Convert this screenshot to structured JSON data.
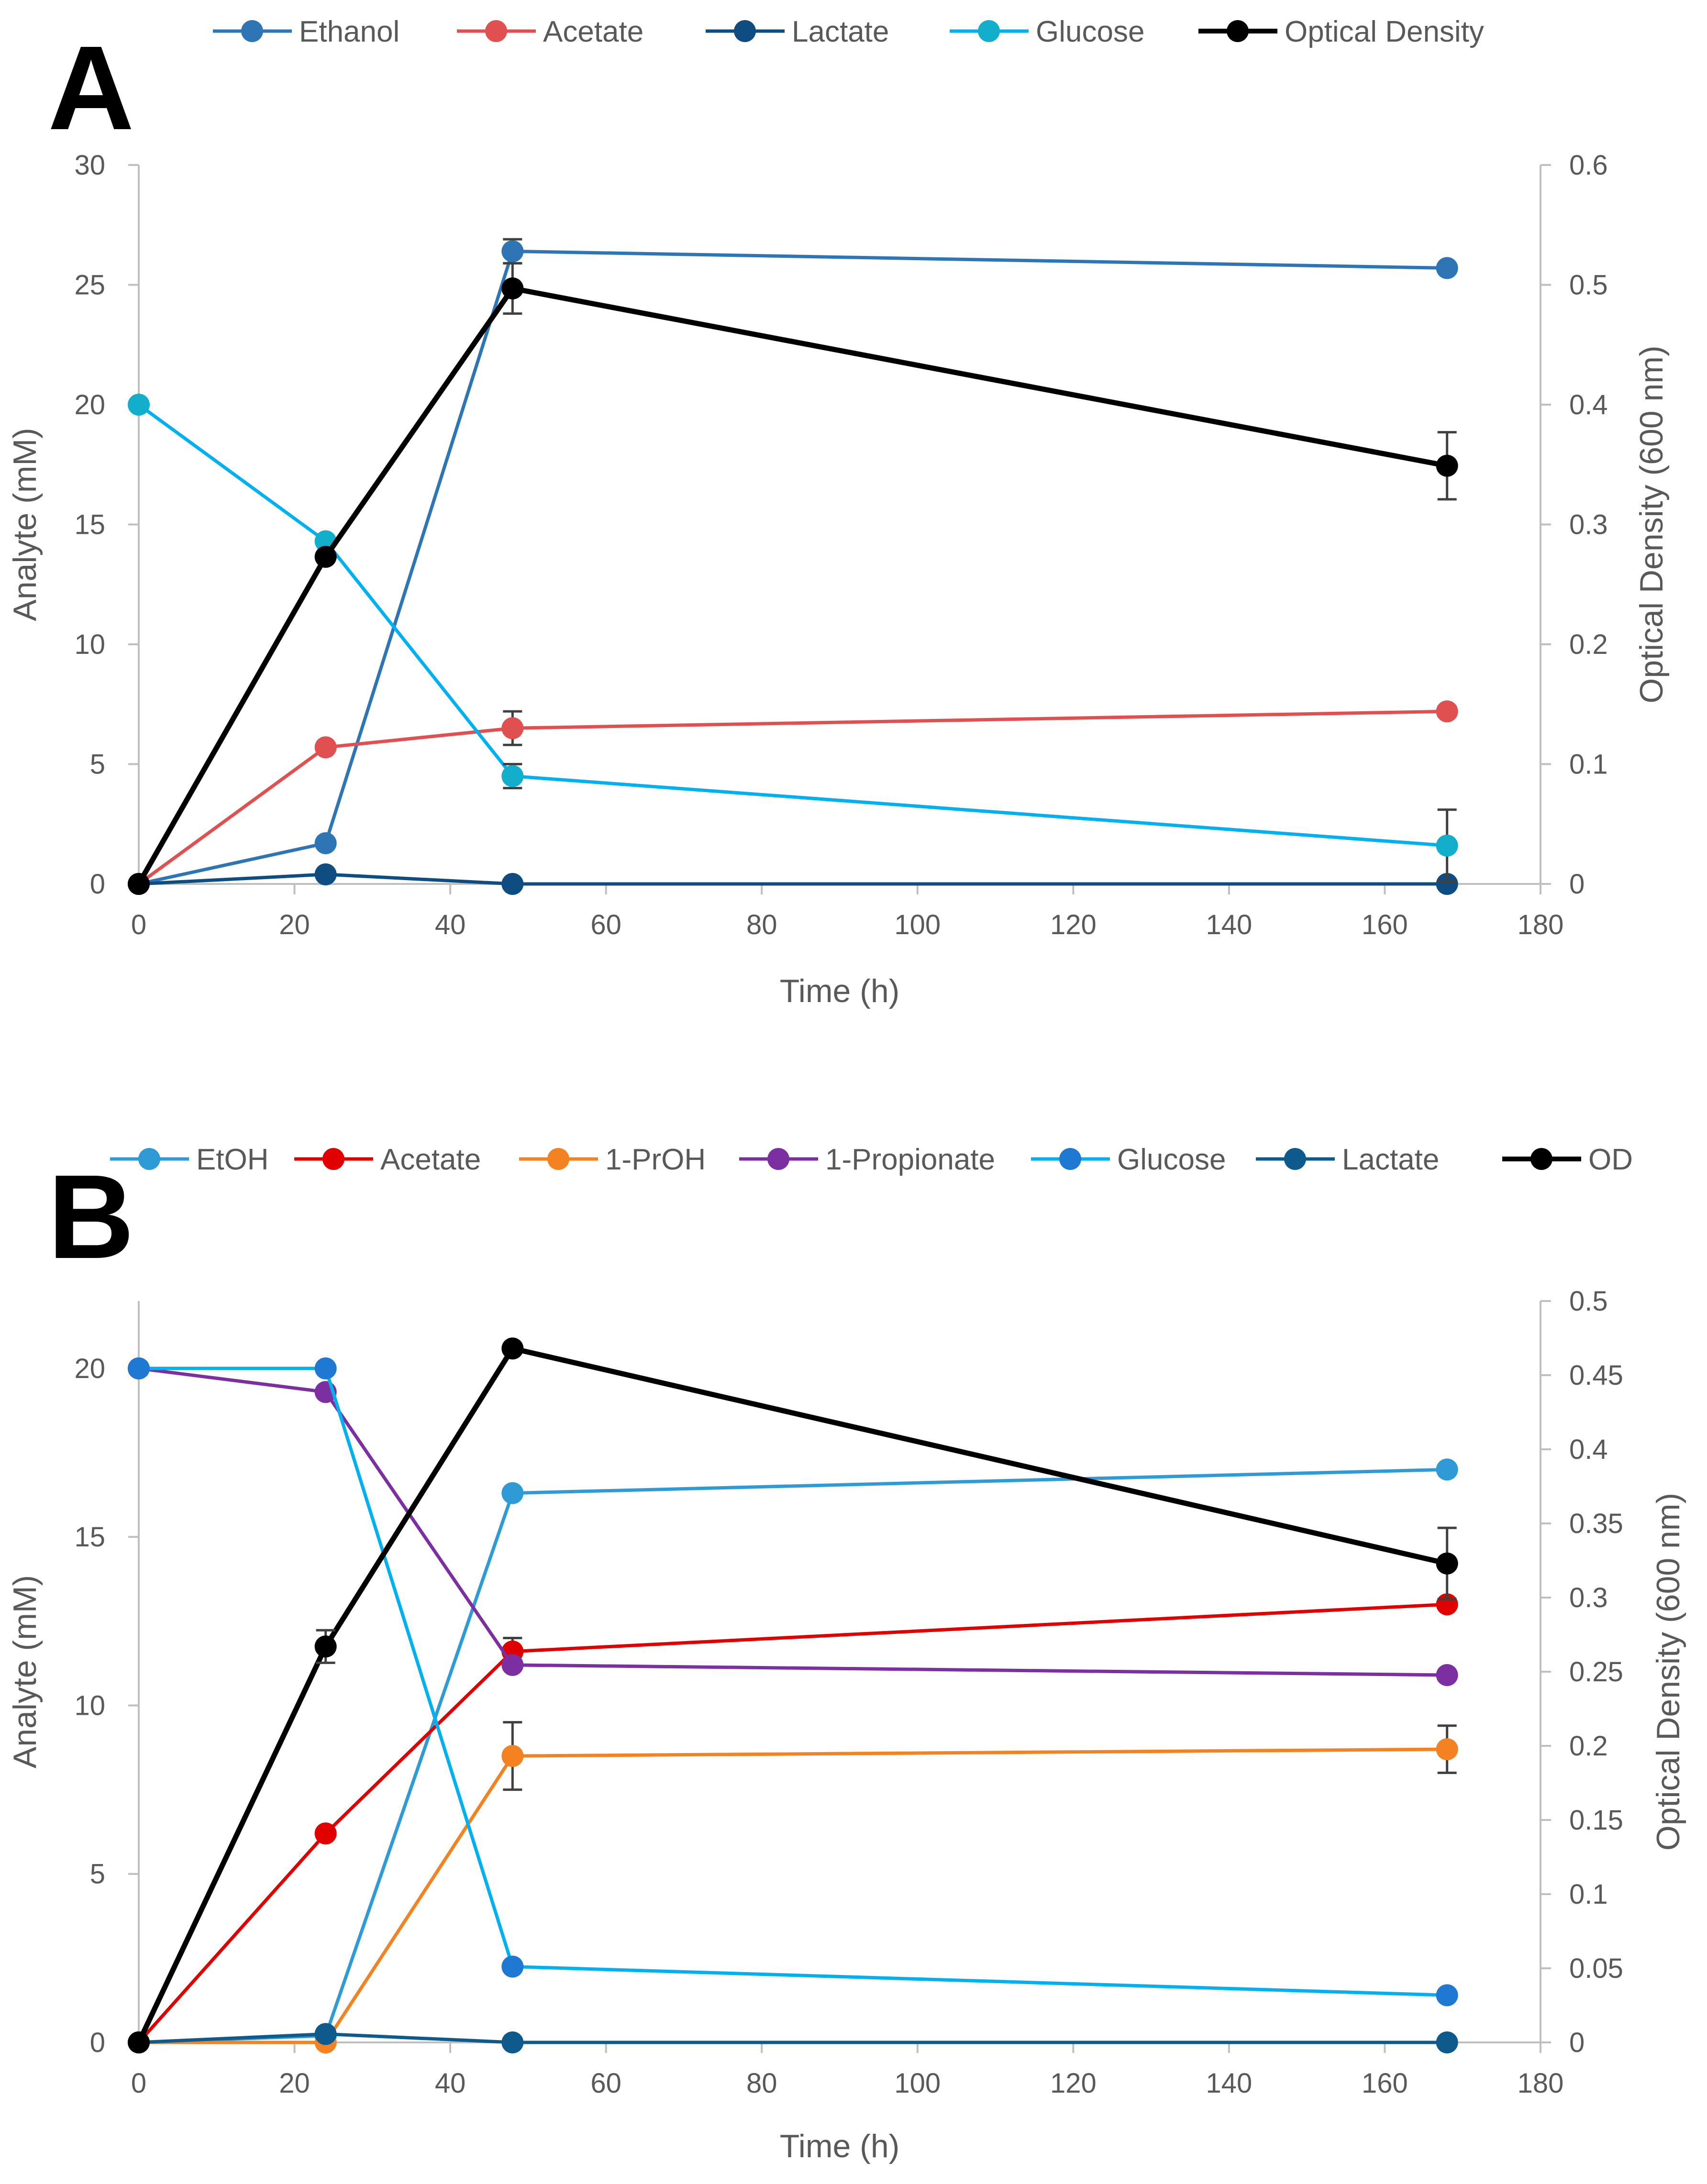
{
  "chart_data": [
    {
      "panel_label": "A",
      "type": "line",
      "xlabel": "Time (h)",
      "ylabel": "Analyte (mM)",
      "y2label": "Optical Density (600 nm)",
      "xlim": [
        0,
        180
      ],
      "ylim": [
        0,
        30
      ],
      "y2lim": [
        0,
        0.6
      ],
      "xticks": [
        "0",
        "20",
        "40",
        "60",
        "80",
        "100",
        "120",
        "140",
        "160",
        "180"
      ],
      "yticks": [
        "0",
        "5",
        "10",
        "15",
        "20",
        "25",
        "30"
      ],
      "y2ticks": [
        "0",
        "0.1",
        "0.2",
        "0.3",
        "0.4",
        "0.5",
        "0.6"
      ],
      "legend_position": "top",
      "series": [
        {
          "name": "Ethanol",
          "color": "#2E75B6",
          "axis": "left",
          "x": [
            0,
            24,
            48,
            168
          ],
          "values": [
            0,
            1.7,
            26.4,
            25.7
          ],
          "errors": [
            0,
            0,
            0.5,
            0
          ]
        },
        {
          "name": "Acetate",
          "color": "#E05050",
          "axis": "left",
          "x": [
            0,
            24,
            48,
            168
          ],
          "values": [
            0,
            5.7,
            6.5,
            7.2
          ],
          "errors": [
            0,
            0,
            0.7,
            0.2
          ]
        },
        {
          "name": "Lactate",
          "color": "#0F4C81",
          "axis": "left",
          "x": [
            0,
            24,
            48,
            168
          ],
          "values": [
            0,
            0.4,
            0,
            0
          ],
          "errors": [
            0,
            0,
            0,
            0
          ]
        },
        {
          "name": "Glucose",
          "color": "#00B0F0",
          "marker": "#12AECB",
          "axis": "left",
          "x": [
            0,
            24,
            48,
            168
          ],
          "values": [
            20,
            14.3,
            4.5,
            1.6
          ],
          "errors": [
            0,
            0,
            0.5,
            1.5
          ]
        },
        {
          "name": "Optical Density",
          "color": "#000000",
          "axis": "right",
          "x": [
            0,
            24,
            48,
            168
          ],
          "values": [
            0,
            0.273,
            0.497,
            0.349
          ],
          "errors": [
            0,
            0,
            0.021,
            0.028
          ]
        }
      ]
    },
    {
      "panel_label": "B",
      "type": "line",
      "xlabel": "Time (h)",
      "ylabel": "Analyte (mM)",
      "y2label": "Optical Density (600 nm)",
      "xlim": [
        0,
        180
      ],
      "ylim": [
        0,
        22
      ],
      "y2lim": [
        0,
        0.5
      ],
      "xticks": [
        "0",
        "20",
        "40",
        "60",
        "80",
        "100",
        "120",
        "140",
        "160",
        "180"
      ],
      "yticks": [
        "0",
        "5",
        "10",
        "15",
        "20"
      ],
      "y2ticks": [
        "0",
        "0.05",
        "0.1",
        "0.15",
        "0.2",
        "0.25",
        "0.3",
        "0.35",
        "0.4",
        "0.45",
        "0.5"
      ],
      "legend_position": "top",
      "series": [
        {
          "name": "EtOH",
          "color": "#2E9BD6",
          "axis": "left",
          "x": [
            0,
            24,
            48,
            168
          ],
          "values": [
            0,
            0.2,
            16.3,
            17.0
          ],
          "errors": [
            0,
            0,
            0,
            0
          ]
        },
        {
          "name": "Acetate",
          "color": "#E00000",
          "axis": "left",
          "x": [
            0,
            24,
            48,
            168
          ],
          "values": [
            0,
            6.2,
            11.6,
            13.0
          ],
          "errors": [
            0,
            0,
            0.4,
            0
          ]
        },
        {
          "name": "1-PrOH",
          "color": "#F58220",
          "axis": "left",
          "x": [
            0,
            24,
            48,
            168
          ],
          "values": [
            0,
            0,
            8.5,
            8.7
          ],
          "errors": [
            0,
            0,
            1.0,
            0.7
          ]
        },
        {
          "name": "1-Propionate",
          "color": "#7B2FA0",
          "axis": "left",
          "x": [
            0,
            24,
            48,
            168
          ],
          "values": [
            20,
            19.3,
            11.2,
            10.9
          ],
          "errors": [
            0,
            0,
            0,
            0
          ]
        },
        {
          "name": "Glucose",
          "color": "#00B0F0",
          "marker": "#1F78D1",
          "axis": "left",
          "x": [
            0,
            24,
            48,
            168
          ],
          "values": [
            20,
            20,
            2.25,
            1.4
          ],
          "errors": [
            0,
            0,
            0,
            0
          ]
        },
        {
          "name": "Lactate",
          "color": "#0F5A8C",
          "axis": "left",
          "x": [
            0,
            24,
            48,
            168
          ],
          "values": [
            0,
            0.25,
            0,
            0
          ],
          "errors": [
            0,
            0,
            0,
            0
          ]
        },
        {
          "name": "OD",
          "color": "#000000",
          "axis": "right",
          "x": [
            0,
            24,
            48,
            168
          ],
          "values": [
            0,
            0.267,
            0.468,
            0.323
          ],
          "errors": [
            0,
            0.011,
            0,
            0.024
          ]
        }
      ]
    }
  ]
}
